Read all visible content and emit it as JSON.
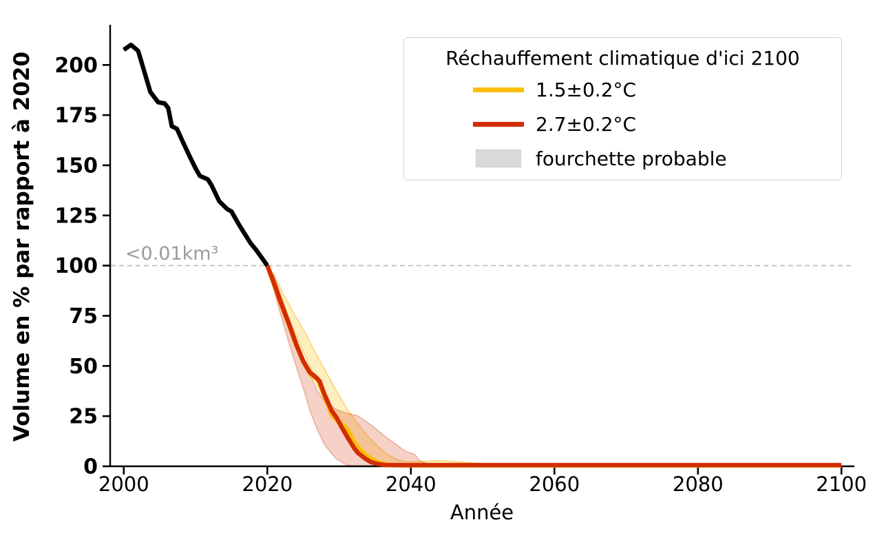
{
  "chart_data": {
    "type": "line",
    "title": "",
    "xlabel": "Année",
    "ylabel": "Volume en % par rapport à 2020",
    "xlim": [
      1998.1,
      2101.8
    ],
    "ylim": [
      0,
      220
    ],
    "xticks": [
      2000,
      2020,
      2040,
      2060,
      2080,
      2100
    ],
    "yticks": [
      0,
      25,
      50,
      75,
      100,
      125,
      150,
      175,
      200
    ],
    "grid": false,
    "legend_position": "upper right",
    "reference_line": {
      "y": 100,
      "style": "dashed",
      "color": "#bbbbbb"
    },
    "annotation": {
      "text": "<0.01km³",
      "x": 2000.2,
      "y": 103,
      "color": "#9b9b9b"
    },
    "legend": {
      "title": "Réchauffement climatique d'ici 2100",
      "entries": [
        {
          "label": "1.5±0.2°C",
          "type": "line",
          "color": "#FBBE05"
        },
        {
          "label": "2.7±0.2°C",
          "type": "line",
          "color": "#D22D05"
        },
        {
          "label": "fourchette probable",
          "type": "patch",
          "color": "#D9D9D9"
        }
      ]
    },
    "bands": [
      {
        "name": "fourchette probable 1.5°C",
        "color": "rgba(251,190,5,0.25)",
        "stroke": "rgba(249,180,8,0.5)",
        "x": [
          2020,
          2020.9,
          2022.4,
          2023.8,
          2025.3,
          2026.7,
          2028.2,
          2029.6,
          2031.1,
          2032.5,
          2033.9,
          2035.3,
          2036.8,
          2038.2,
          2039.6,
          2041,
          2043.2,
          2045.5,
          2048,
          2050.5,
          2053,
          2055.5,
          2058,
          2061,
          2063,
          2065,
          2067
        ],
        "upper": [
          100,
          95.5,
          84.7,
          75.5,
          66.3,
          56.6,
          46.9,
          37.7,
          28.6,
          21.7,
          15.4,
          10.2,
          5.7,
          3.2,
          2.2,
          2.4,
          2.8,
          2.5,
          1.9,
          1.3,
          0.7,
          0.3,
          0.2,
          0.6,
          0.9,
          0.3,
          0
        ],
        "lower": [
          100,
          92,
          79,
          67,
          55,
          43.5,
          32.5,
          22.5,
          14,
          8,
          4,
          1.8,
          0.7,
          0.2,
          0,
          0,
          0,
          0,
          0,
          0,
          0,
          0,
          0,
          0,
          0,
          0,
          0
        ]
      },
      {
        "name": "fourchette probable 2.7°C",
        "color": "rgba(210,45,5,0.22)",
        "stroke": "rgba(210,45,5,0.3)",
        "x": [
          2020,
          2021,
          2022,
          2023,
          2024,
          2025,
          2026,
          2027,
          2028,
          2029.5,
          2031,
          2032.6,
          2034.5,
          2036.4,
          2038.4,
          2039.3,
          2040.5,
          2041.2,
          2042.2,
          2042.9
        ],
        "upper": [
          100,
          94.5,
          84,
          74,
          64,
          54.5,
          45.5,
          37.5,
          32,
          28.5,
          26.5,
          25.2,
          20.5,
          14.9,
          9.7,
          7.4,
          6.0,
          2.8,
          1.4,
          0.2
        ],
        "lower": [
          100,
          86.5,
          74,
          61.5,
          50,
          39,
          27,
          18,
          10.5,
          4,
          0.7,
          0.05,
          0,
          0,
          0,
          0,
          0,
          0,
          0,
          0
        ]
      }
    ],
    "series": [
      {
        "name": "1.5±0.2°C",
        "color": "#FBBE05",
        "x": [
          2020,
          2021,
          2022,
          2023,
          2024,
          2025,
          2026,
          2027,
          2028,
          2029,
          2029.7,
          2030.7,
          2031.2,
          2032.1,
          2032.6,
          2033.6,
          2034.5,
          2035.5,
          2036.4,
          2037.4,
          2039,
          2042,
          2046,
          2060,
          2080,
          2100
        ],
        "y": [
          100,
          90,
          80,
          70.5,
          60.5,
          52,
          46,
          43,
          34.5,
          25.5,
          22.8,
          20,
          18.3,
          12,
          9.7,
          5.9,
          3.6,
          2,
          1.1,
          0.6,
          0.45,
          0.4,
          0.4,
          0.4,
          0.4,
          0.4
        ]
      },
      {
        "name": "2.7±0.2°C",
        "color": "#D22D05",
        "x": [
          2020,
          2021,
          2022,
          2023,
          2024,
          2025,
          2025.9,
          2026.9,
          2027.3,
          2028,
          2029,
          2029.7,
          2030.2,
          2031.2,
          2032.1,
          2032.6,
          2033.6,
          2034.5,
          2035.5,
          2036.4,
          2037.4,
          2039,
          2045,
          2060,
          2080,
          2100
        ],
        "y": [
          100,
          90.5,
          80.5,
          71,
          61,
          52.5,
          46.9,
          44,
          42.3,
          35.5,
          27.5,
          24,
          20.5,
          14.3,
          9.1,
          6.8,
          3.9,
          2,
          1.1,
          0.65,
          0.6,
          0.6,
          0.6,
          0.6,
          0.6,
          0.6
        ]
      },
      {
        "name": "historique 2000–2020",
        "color": "#000000",
        "x": [
          2000,
          2001,
          2002,
          2003.7,
          2004.8,
          2005.7,
          2006.2,
          2006.7,
          2007.4,
          2008.2,
          2009.1,
          2010,
          2010.6,
          2011.7,
          2012.2,
          2013.3,
          2014.4,
          2015,
          2016,
          2017.6,
          2018.5,
          2019.3,
          2020
        ],
        "y": [
          207.5,
          210,
          207,
          186.5,
          181.4,
          180.8,
          178.5,
          169.4,
          168.2,
          161.9,
          155,
          148.5,
          144.7,
          143,
          140.2,
          132.1,
          128.2,
          127,
          120.7,
          111.5,
          107.5,
          103.5,
          100
        ]
      }
    ]
  }
}
